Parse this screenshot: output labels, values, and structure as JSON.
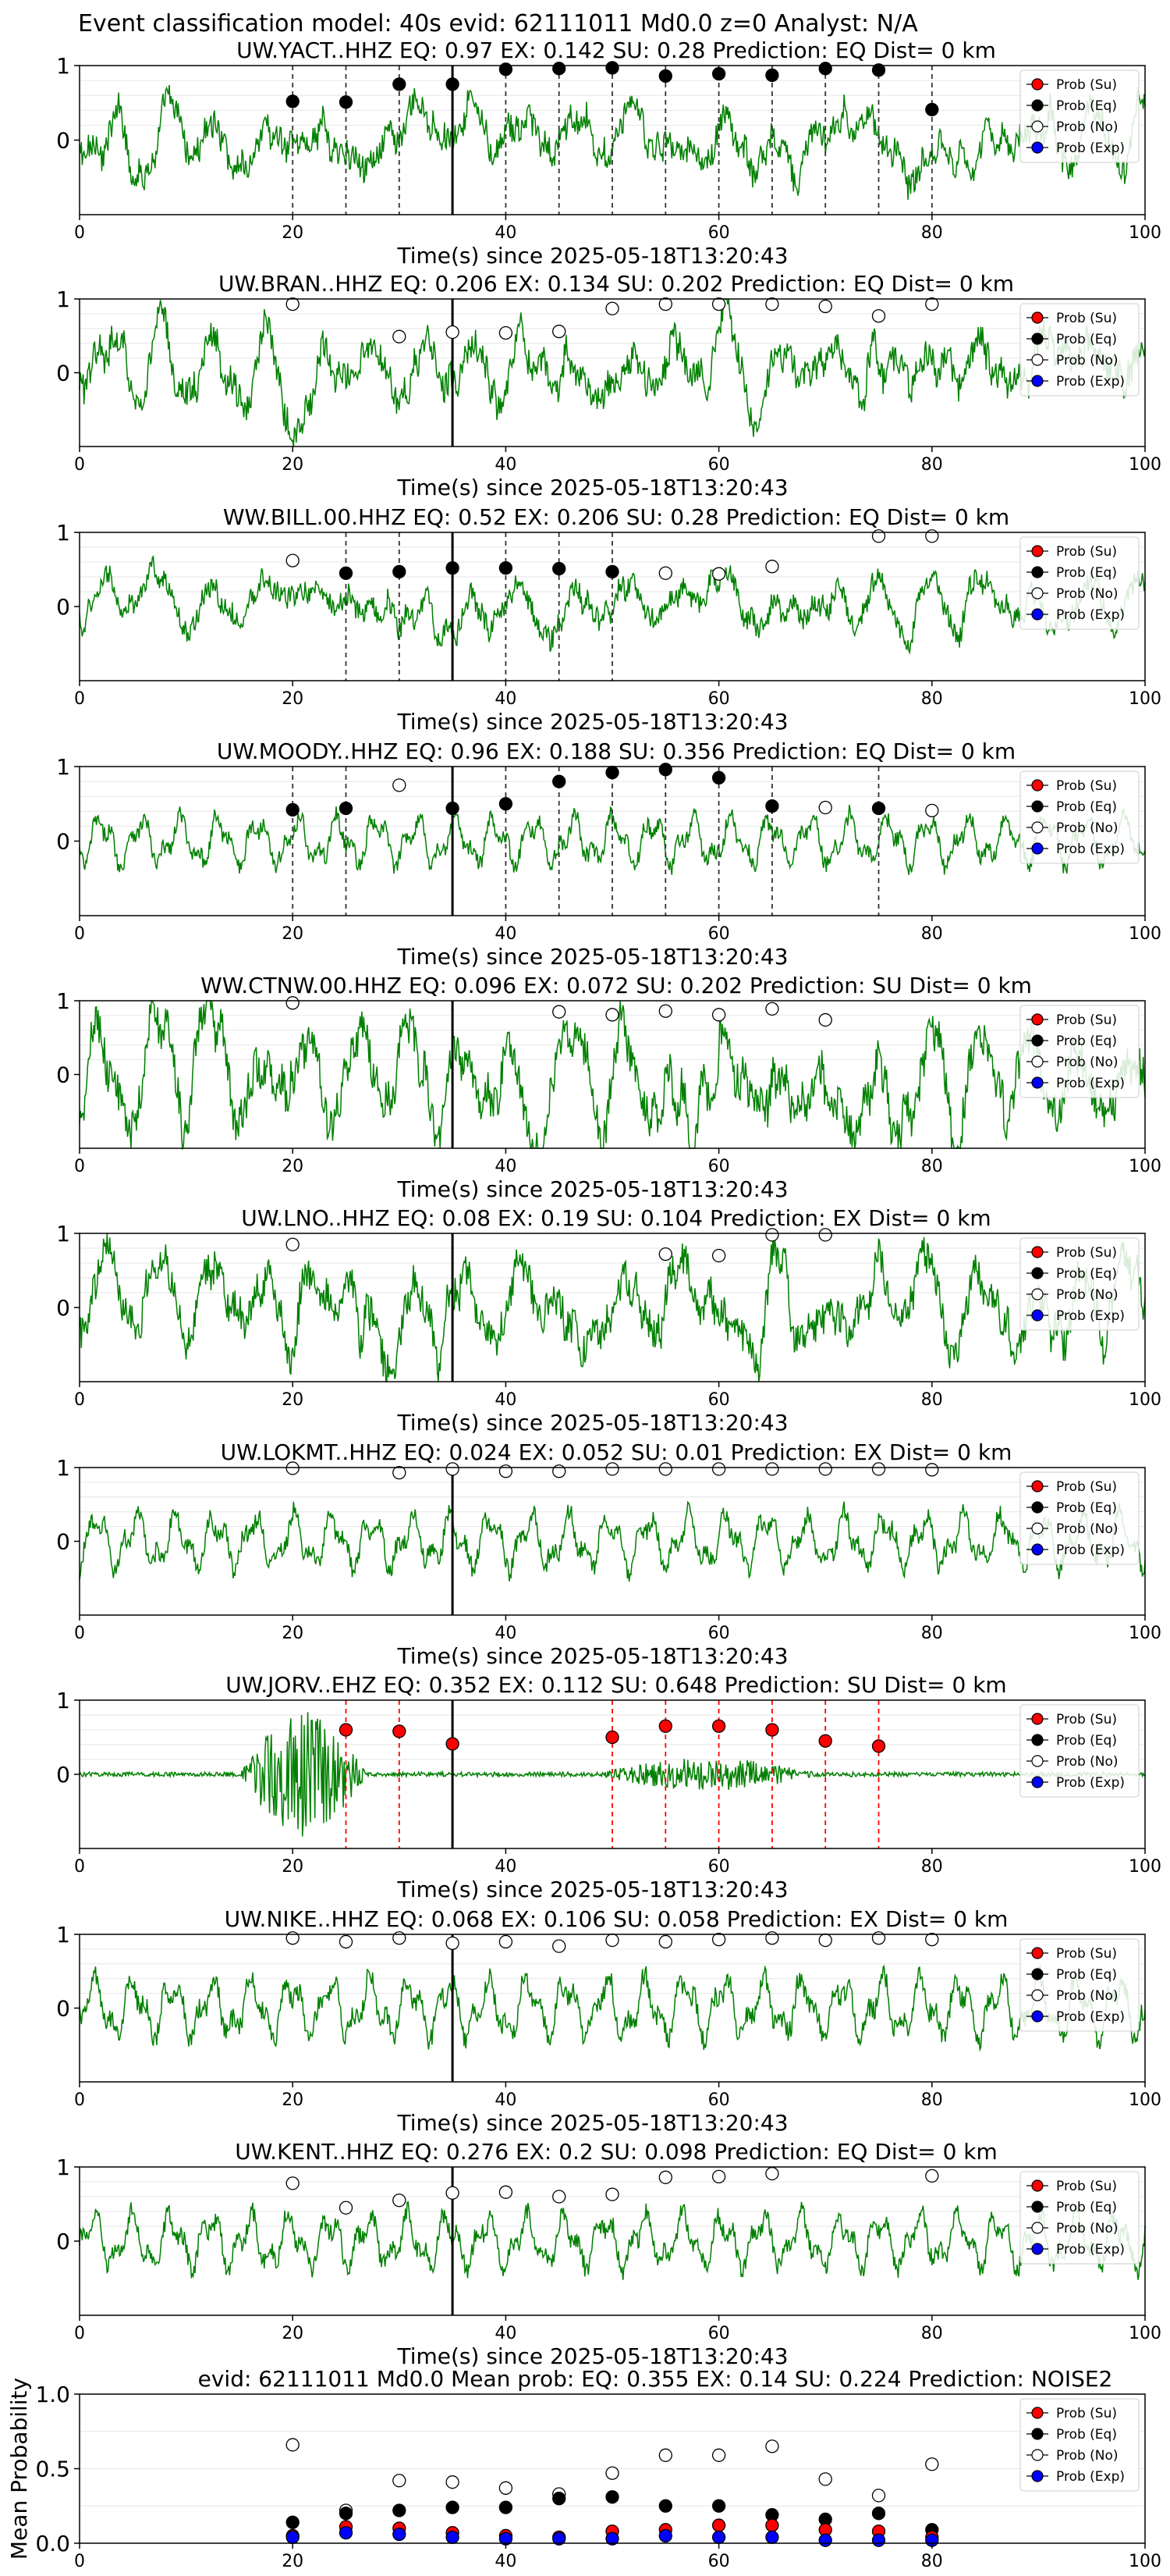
{
  "suptitle": "Event classification model: 40s evid: 62111011 Md0.0 z=0 Analyst: N/A",
  "legend_labels": [
    "Prob (Su)",
    "Prob (Eq)",
    "Prob (No)",
    "Prob (Exp)"
  ],
  "colors": {
    "waveform": "#008000",
    "su": "#ff0000",
    "eq": "#000000",
    "no": "#ffffff",
    "exp": "#0000ff"
  },
  "chart_data": [
    {
      "type": "line",
      "title": "UW.YACT..HHZ   EQ: 0.97  EX: 0.142  SU: 0.28   Prediction: EQ    Dist= 0 km",
      "xlabel": "Time(s) since 2025-05-18T13:20:43",
      "ylabel": "",
      "xlim": [
        0,
        100
      ],
      "ylim": [
        -1,
        1
      ],
      "xticks": [
        "0",
        "20",
        "40",
        "60",
        "80",
        "100"
      ],
      "yticks": [
        "0",
        "1"
      ],
      "waveform": {
        "style": "noisy",
        "amplitude": 0.5
      },
      "event_marker_x": 35,
      "dashed_lines": {
        "color": "black",
        "x": [
          20,
          25,
          30,
          35,
          40,
          45,
          50,
          55,
          60,
          65,
          70,
          75,
          80
        ]
      },
      "prob_series": [
        {
          "kind": "eq",
          "x": [
            20,
            25,
            30,
            35,
            40,
            45,
            50,
            55,
            60,
            65,
            70,
            75,
            80
          ],
          "y": [
            0.52,
            0.51,
            0.75,
            0.75,
            0.95,
            0.96,
            0.97,
            0.86,
            0.89,
            0.87,
            0.96,
            0.94,
            0.41
          ]
        }
      ],
      "legend": "top-right"
    },
    {
      "type": "line",
      "title": "UW.BRAN..HHZ   EQ: 0.206  EX: 0.134  SU: 0.202   Prediction: EQ    Dist= 0 km",
      "xlabel": "Time(s) since 2025-05-18T13:20:43",
      "ylabel": "",
      "xlim": [
        0,
        100
      ],
      "ylim": [
        -1,
        1
      ],
      "xticks": [
        "0",
        "20",
        "40",
        "60",
        "80",
        "100"
      ],
      "yticks": [
        "0",
        "1"
      ],
      "waveform": {
        "style": "noisy",
        "amplitude": 0.55
      },
      "event_marker_x": 35,
      "dashed_lines": {
        "color": "black",
        "x": []
      },
      "prob_series": [
        {
          "kind": "no",
          "x": [
            20,
            30,
            35,
            40,
            45,
            50,
            55,
            60,
            65,
            70,
            75,
            80
          ],
          "y": [
            0.93,
            0.49,
            0.55,
            0.54,
            0.56,
            0.87,
            0.93,
            0.93,
            0.93,
            0.9,
            0.77,
            0.93
          ]
        }
      ],
      "legend": "top-right"
    },
    {
      "type": "line",
      "title": "WW.BILL.00.HHZ   EQ: 0.52  EX: 0.206  SU: 0.28   Prediction: EQ    Dist= 0 km",
      "xlabel": "Time(s) since 2025-05-18T13:20:43",
      "ylabel": "",
      "xlim": [
        0,
        100
      ],
      "ylim": [
        -1,
        1
      ],
      "xticks": [
        "0",
        "20",
        "40",
        "60",
        "80",
        "100"
      ],
      "yticks": [
        "0",
        "1"
      ],
      "waveform": {
        "style": "noisy",
        "amplitude": 0.4
      },
      "event_marker_x": 35,
      "dashed_lines": {
        "color": "black",
        "x": [
          25,
          30,
          35,
          40,
          45,
          50
        ]
      },
      "prob_series": [
        {
          "kind": "eq",
          "x": [
            25,
            30,
            35,
            40,
            45,
            50
          ],
          "y": [
            0.45,
            0.47,
            0.52,
            0.52,
            0.51,
            0.47
          ]
        },
        {
          "kind": "no",
          "x": [
            20,
            55,
            60,
            65,
            75,
            80
          ],
          "y": [
            0.62,
            0.45,
            0.44,
            0.54,
            0.95,
            0.95
          ]
        }
      ],
      "legend": "top-right"
    },
    {
      "type": "line",
      "title": "UW.MOODY..HHZ   EQ: 0.96  EX: 0.188  SU: 0.356   Prediction: EQ    Dist= 0 km",
      "xlabel": "Time(s) since 2025-05-18T13:20:43",
      "ylabel": "",
      "xlim": [
        0,
        100
      ],
      "ylim": [
        -1,
        1
      ],
      "xticks": [
        "0",
        "20",
        "40",
        "60",
        "80",
        "100"
      ],
      "yticks": [
        "0",
        "1"
      ],
      "waveform": {
        "style": "smooth",
        "amplitude": 0.45
      },
      "event_marker_x": 35,
      "dashed_lines": {
        "color": "black",
        "x": [
          20,
          25,
          35,
          40,
          45,
          50,
          55,
          60,
          65,
          75
        ]
      },
      "prob_series": [
        {
          "kind": "eq",
          "x": [
            20,
            25,
            35,
            40,
            45,
            50,
            55,
            60,
            65,
            75
          ],
          "y": [
            0.42,
            0.44,
            0.44,
            0.5,
            0.8,
            0.92,
            0.96,
            0.85,
            0.47,
            0.44
          ]
        },
        {
          "kind": "no",
          "x": [
            30,
            70,
            80
          ],
          "y": [
            0.75,
            0.45,
            0.41
          ]
        }
      ],
      "legend": "top-right"
    },
    {
      "type": "line",
      "title": "WW.CTNW.00.HHZ   EQ: 0.096  EX: 0.072  SU: 0.202   Prediction: SU    Dist= 0 km",
      "xlabel": "Time(s) since 2025-05-18T13:20:43",
      "ylabel": "",
      "xlim": [
        0,
        100
      ],
      "ylim": [
        -1,
        1
      ],
      "xticks": [
        "0",
        "20",
        "40",
        "60",
        "80",
        "100"
      ],
      "yticks": [
        "0",
        "1"
      ],
      "waveform": {
        "style": "noisy",
        "amplitude": 0.75
      },
      "event_marker_x": 35,
      "dashed_lines": {
        "color": "black",
        "x": []
      },
      "prob_series": [
        {
          "kind": "no",
          "x": [
            20,
            45,
            50,
            55,
            60,
            65,
            70
          ],
          "y": [
            0.97,
            0.85,
            0.81,
            0.86,
            0.81,
            0.89,
            0.74
          ]
        }
      ],
      "legend": "top-right"
    },
    {
      "type": "line",
      "title": "UW.LNO..HHZ   EQ: 0.08  EX: 0.19  SU: 0.104   Prediction: EX    Dist= 0 km",
      "xlabel": "Time(s) since 2025-05-18T13:20:43",
      "ylabel": "",
      "xlim": [
        0,
        100
      ],
      "ylim": [
        -1,
        1
      ],
      "xticks": [
        "0",
        "20",
        "40",
        "60",
        "80",
        "100"
      ],
      "yticks": [
        "0",
        "1"
      ],
      "waveform": {
        "style": "noisy",
        "amplitude": 0.65
      },
      "event_marker_x": 35,
      "dashed_lines": {
        "color": "black",
        "x": []
      },
      "prob_series": [
        {
          "kind": "no",
          "x": [
            20,
            55,
            60,
            65,
            70
          ],
          "y": [
            0.85,
            0.72,
            0.7,
            0.98,
            0.98
          ]
        }
      ],
      "legend": "top-right"
    },
    {
      "type": "line",
      "title": "UW.LOKMT..HHZ   EQ: 0.024  EX: 0.052  SU: 0.01   Prediction: EX    Dist= 0 km",
      "xlabel": "Time(s) since 2025-05-18T13:20:43",
      "ylabel": "",
      "xlim": [
        0,
        100
      ],
      "ylim": [
        -1,
        1
      ],
      "xticks": [
        "0",
        "20",
        "40",
        "60",
        "80",
        "100"
      ],
      "yticks": [
        "0",
        "1"
      ],
      "waveform": {
        "style": "smooth",
        "amplitude": 0.5
      },
      "event_marker_x": 35,
      "dashed_lines": {
        "color": "black",
        "x": []
      },
      "prob_series": [
        {
          "kind": "no",
          "x": [
            20,
            30,
            35,
            40,
            45,
            50,
            55,
            60,
            65,
            70,
            75,
            80
          ],
          "y": [
            0.99,
            0.93,
            0.98,
            0.95,
            0.95,
            0.98,
            0.98,
            0.98,
            0.98,
            0.98,
            0.98,
            0.97
          ]
        }
      ],
      "legend": "top-right"
    },
    {
      "type": "line",
      "title": "UW.JORV..EHZ   EQ: 0.352  EX: 0.112  SU: 0.648   Prediction: SU    Dist= 0 km",
      "xlabel": "Time(s) since 2025-05-18T13:20:43",
      "ylabel": "",
      "xlim": [
        0,
        100
      ],
      "ylim": [
        -1,
        1
      ],
      "xticks": [
        "0",
        "20",
        "40",
        "60",
        "80",
        "100"
      ],
      "yticks": [
        "0",
        "1"
      ],
      "waveform": {
        "style": "burst",
        "amplitude": 0.9
      },
      "event_marker_x": 35,
      "dashed_lines": {
        "color": "red",
        "x": [
          25,
          30,
          50,
          55,
          60,
          65,
          70,
          75
        ]
      },
      "prob_series": [
        {
          "kind": "su",
          "x": [
            25,
            30,
            35,
            50,
            55,
            60,
            65,
            70,
            75
          ],
          "y": [
            0.6,
            0.58,
            0.41,
            0.5,
            0.65,
            0.65,
            0.6,
            0.45,
            0.38
          ]
        }
      ],
      "legend": "top-right"
    },
    {
      "type": "line",
      "title": "UW.NIKE..HHZ   EQ: 0.068  EX: 0.106  SU: 0.058   Prediction: EX    Dist= 0 km",
      "xlabel": "Time(s) since 2025-05-18T13:20:43",
      "ylabel": "",
      "xlim": [
        0,
        100
      ],
      "ylim": [
        -1,
        1
      ],
      "xticks": [
        "0",
        "20",
        "40",
        "60",
        "80",
        "100"
      ],
      "yticks": [
        "0",
        "1"
      ],
      "waveform": {
        "style": "smooth",
        "amplitude": 0.55
      },
      "event_marker_x": 35,
      "dashed_lines": {
        "color": "black",
        "x": []
      },
      "prob_series": [
        {
          "kind": "no",
          "x": [
            20,
            25,
            30,
            35,
            40,
            45,
            50,
            55,
            60,
            65,
            70,
            75,
            80
          ],
          "y": [
            0.95,
            0.9,
            0.95,
            0.88,
            0.9,
            0.84,
            0.92,
            0.9,
            0.93,
            0.95,
            0.92,
            0.95,
            0.93
          ]
        }
      ],
      "legend": "top-right"
    },
    {
      "type": "line",
      "title": "UW.KENT..HHZ   EQ: 0.276  EX: 0.2  SU: 0.098   Prediction: EQ    Dist= 0 km",
      "xlabel": "Time(s) since 2025-05-18T13:20:43",
      "ylabel": "",
      "xlim": [
        0,
        100
      ],
      "ylim": [
        -1,
        1
      ],
      "xticks": [
        "0",
        "20",
        "40",
        "60",
        "80",
        "100"
      ],
      "yticks": [
        "0",
        "1"
      ],
      "waveform": {
        "style": "smooth",
        "amplitude": 0.5
      },
      "event_marker_x": 35,
      "dashed_lines": {
        "color": "black",
        "x": []
      },
      "prob_series": [
        {
          "kind": "no",
          "x": [
            20,
            25,
            30,
            35,
            40,
            45,
            50,
            55,
            60,
            65,
            80
          ],
          "y": [
            0.78,
            0.45,
            0.55,
            0.65,
            0.66,
            0.6,
            0.63,
            0.86,
            0.87,
            0.91,
            0.88
          ]
        }
      ],
      "legend": "top-right"
    },
    {
      "type": "scatter",
      "title": "evid: 62111011  Md0.0   Mean prob:   EQ: 0.355  EX: 0.14  SU: 0.224   Prediction: NOISE2",
      "xlabel": "",
      "ylabel": "Mean Probability",
      "xlim": [
        0,
        100
      ],
      "ylim": [
        0,
        1
      ],
      "xticks": [
        "0",
        "20",
        "40",
        "60",
        "80",
        "100"
      ],
      "yticks": [
        "0.0",
        "0.5",
        "1.0"
      ],
      "event_marker_x": null,
      "dashed_lines": {
        "color": "black",
        "x": []
      },
      "prob_series": [
        {
          "kind": "no",
          "x": [
            20,
            25,
            30,
            35,
            40,
            45,
            50,
            55,
            60,
            65,
            70,
            75,
            80
          ],
          "y": [
            0.66,
            0.22,
            0.42,
            0.41,
            0.37,
            0.33,
            0.47,
            0.59,
            0.59,
            0.65,
            0.43,
            0.32,
            0.53
          ]
        },
        {
          "kind": "eq",
          "x": [
            20,
            25,
            30,
            35,
            40,
            45,
            50,
            55,
            60,
            65,
            70,
            75,
            80
          ],
          "y": [
            0.14,
            0.2,
            0.22,
            0.24,
            0.24,
            0.3,
            0.31,
            0.25,
            0.25,
            0.19,
            0.16,
            0.2,
            0.09
          ]
        },
        {
          "kind": "su",
          "x": [
            20,
            25,
            30,
            35,
            40,
            45,
            50,
            55,
            60,
            65,
            70,
            75,
            80
          ],
          "y": [
            0.05,
            0.11,
            0.1,
            0.07,
            0.05,
            0.04,
            0.08,
            0.09,
            0.12,
            0.12,
            0.09,
            0.08,
            0.04
          ]
        },
        {
          "kind": "exp",
          "x": [
            20,
            25,
            30,
            35,
            40,
            45,
            50,
            55,
            60,
            65,
            70,
            75,
            80
          ],
          "y": [
            0.04,
            0.07,
            0.06,
            0.04,
            0.03,
            0.03,
            0.03,
            0.05,
            0.04,
            0.04,
            0.02,
            0.02,
            0.02
          ]
        }
      ],
      "legend": "top-right"
    }
  ]
}
